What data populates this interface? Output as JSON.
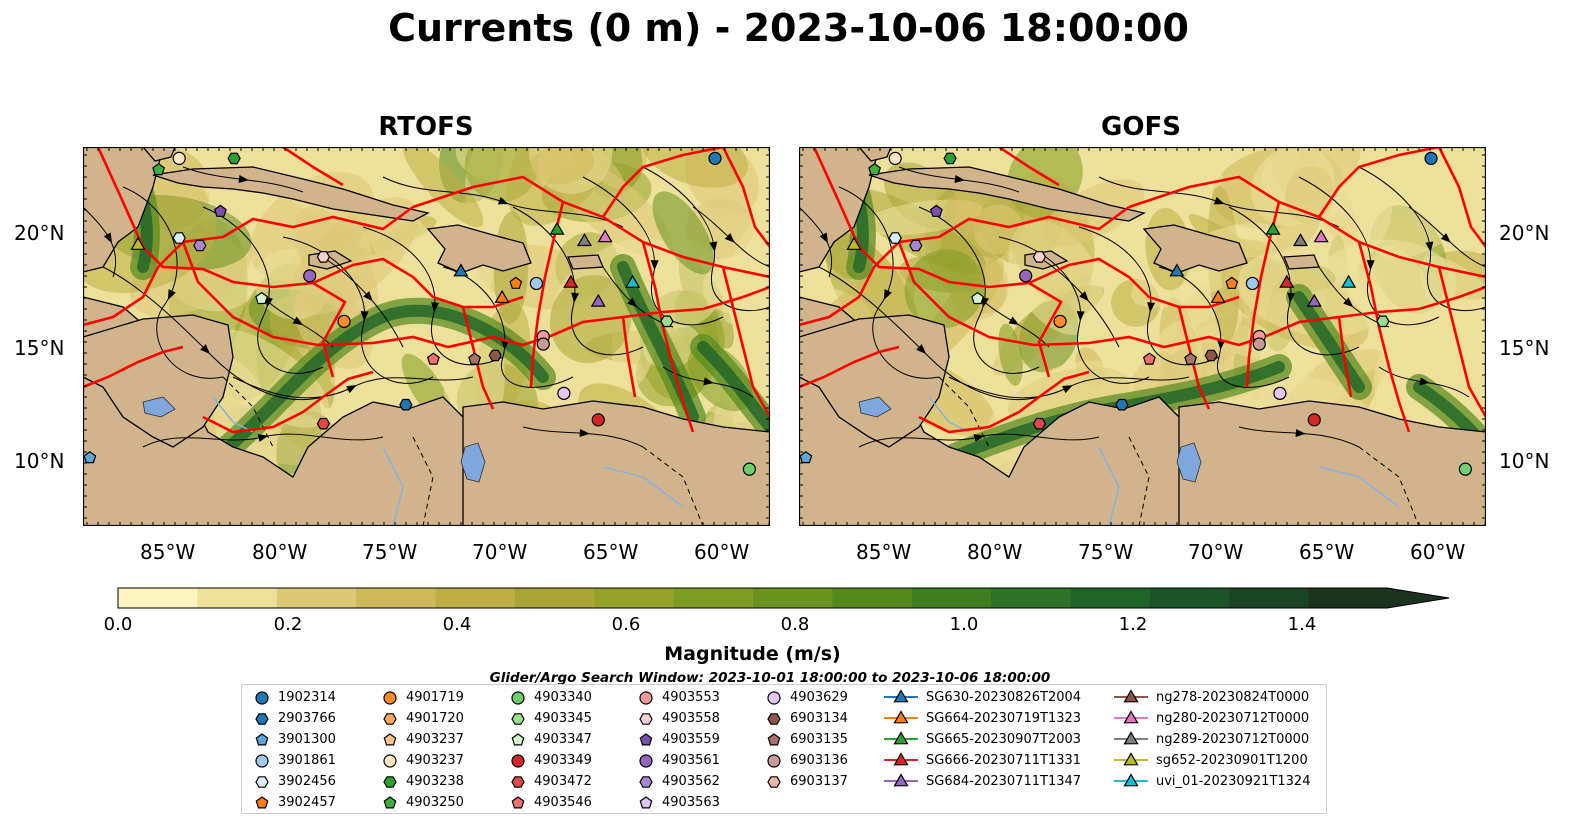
{
  "title": "Currents (0 m) - 2023-10-06 18:00:00",
  "panels": [
    {
      "title": "RTOFS"
    },
    {
      "title": "GOFS"
    }
  ],
  "lon_ticks": [
    "85°W",
    "80°W",
    "75°W",
    "70°W",
    "65°W",
    "60°W"
  ],
  "lat_ticks": [
    "20°N",
    "15°N",
    "10°N"
  ],
  "colorbar": {
    "label": "Magnitude (m/s)",
    "ticks": [
      "0.0",
      "0.2",
      "0.4",
      "0.6",
      "0.8",
      "1.0",
      "1.2",
      "1.4"
    ],
    "range": [
      0.0,
      1.6
    ],
    "extend": "max",
    "colors": [
      "#fdf5c0",
      "#ede09a",
      "#ddc878",
      "#cdb85a",
      "#bdae44",
      "#aaa636",
      "#95a22a",
      "#7f9c22",
      "#6a9220",
      "#55891e",
      "#3f7f22",
      "#2e7226",
      "#1f6428",
      "#1a5428",
      "#1a4424",
      "#1c341e"
    ]
  },
  "search_window": "Glider/Argo Search Window: 2023-10-01 18:00:00 to 2023-10-06 18:00:00",
  "colors": {
    "land": "#d2b48c",
    "eez": "#ff0000",
    "lake": "#7fa6dd"
  },
  "legend": [
    {
      "label": "1902314",
      "marker": "circle",
      "color": "#1f77b4"
    },
    {
      "label": "2903766",
      "marker": "hexagon",
      "color": "#1f77b4"
    },
    {
      "label": "3901300",
      "marker": "pentagon",
      "color": "#5da5da"
    },
    {
      "label": "3901861",
      "marker": "circle",
      "color": "#9ec9e9"
    },
    {
      "label": "3902456",
      "marker": "hexagon",
      "color": "#d6ecf8"
    },
    {
      "label": "3902457",
      "marker": "pentagon",
      "color": "#ff7f0e"
    },
    {
      "label": "4901719",
      "marker": "circle",
      "color": "#ff8c2b"
    },
    {
      "label": "4901720",
      "marker": "hexagon",
      "color": "#ffa860"
    },
    {
      "label": "4903237",
      "marker": "pentagon",
      "color": "#ffc48c"
    },
    {
      "label": "4903237",
      "marker": "circle",
      "color": "#ffe5c4"
    },
    {
      "label": "4903238",
      "marker": "hexagon",
      "color": "#2ca02c"
    },
    {
      "label": "4903250",
      "marker": "pentagon",
      "color": "#3cb03c"
    },
    {
      "label": "4903340",
      "marker": "circle",
      "color": "#6fcf6f"
    },
    {
      "label": "4903345",
      "marker": "hexagon",
      "color": "#98df8a"
    },
    {
      "label": "4903347",
      "marker": "pentagon",
      "color": "#d4f5cc"
    },
    {
      "label": "4903349",
      "marker": "circle",
      "color": "#d62728"
    },
    {
      "label": "4903472",
      "marker": "hexagon",
      "color": "#e04848"
    },
    {
      "label": "4903546",
      "marker": "pentagon",
      "color": "#f07070"
    },
    {
      "label": "4903553",
      "marker": "circle",
      "color": "#f59a9a"
    },
    {
      "label": "4903558",
      "marker": "hexagon",
      "color": "#fcd0d0"
    },
    {
      "label": "4903559",
      "marker": "pentagon",
      "color": "#7b4fb0"
    },
    {
      "label": "4903561",
      "marker": "circle",
      "color": "#9467bd"
    },
    {
      "label": "4903562",
      "marker": "hexagon",
      "color": "#a987d0"
    },
    {
      "label": "4903563",
      "marker": "pentagon",
      "color": "#dcc6f2"
    },
    {
      "label": "4903629",
      "marker": "circle",
      "color": "#e2c8f2"
    },
    {
      "label": "6903134",
      "marker": "hexagon",
      "color": "#8c564b"
    },
    {
      "label": "6903135",
      "marker": "pentagon",
      "color": "#a8746a"
    },
    {
      "label": "6903136",
      "marker": "circle",
      "color": "#c49c94"
    },
    {
      "label": "6903137",
      "marker": "hexagon",
      "color": "#e8b8a4"
    },
    {
      "label": "SG630-20230826T2004",
      "marker": "triangle",
      "color": "#1f77b4"
    },
    {
      "label": "SG664-20230719T1323",
      "marker": "triangle",
      "color": "#ff7f0e"
    },
    {
      "label": "SG665-20230907T2003",
      "marker": "triangle",
      "color": "#2ca02c"
    },
    {
      "label": "SG666-20230711T1331",
      "marker": "triangle",
      "color": "#d62728"
    },
    {
      "label": "SG684-20230711T1347",
      "marker": "triangle",
      "color": "#9467bd"
    },
    {
      "label": "ng278-20230824T0000",
      "marker": "triangle",
      "color": "#8c564b"
    },
    {
      "label": "ng280-20230712T0000",
      "marker": "triangle",
      "color": "#e377c2"
    },
    {
      "label": "ng289-20230712T0000",
      "marker": "triangle",
      "color": "#7f7f7f"
    },
    {
      "label": "sg652-20230901T1200",
      "marker": "triangle",
      "color": "#bcbd22"
    },
    {
      "label": "uvi_01-20230921T1324",
      "marker": "triangle",
      "color": "#17becf"
    }
  ]
}
